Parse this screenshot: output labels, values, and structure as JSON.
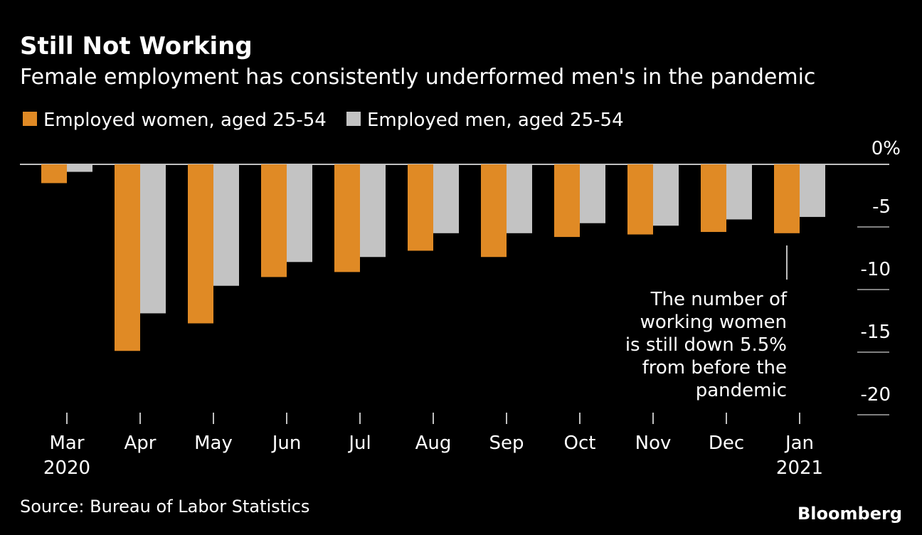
{
  "title": "Still Not Working",
  "subtitle": "Female employment has consistently underformed men's in the pandemic",
  "source": "Source: Bureau of Labor Statistics",
  "logo": "Bloomberg",
  "colors": {
    "women": "#e08a25",
    "men": "#c3c3c3",
    "background": "#000000"
  },
  "chart_data": {
    "type": "bar",
    "categories": [
      "Mar",
      "Apr",
      "May",
      "Jun",
      "Jul",
      "Aug",
      "Sep",
      "Oct",
      "Nov",
      "Dec",
      "Jan"
    ],
    "category_years": [
      "2020",
      "",
      "",
      "",
      "",
      "",
      "",
      "",
      "",
      "",
      "2021"
    ],
    "series": [
      {
        "name": "Employed women, aged 25-54",
        "values": [
          -1.5,
          -14.9,
          -12.7,
          -9.0,
          -8.6,
          -6.9,
          -7.4,
          -5.8,
          -5.6,
          -5.4,
          -5.5
        ]
      },
      {
        "name": "Employed men, aged 25-54",
        "values": [
          -0.6,
          -11.9,
          -9.7,
          -7.8,
          -7.4,
          -5.5,
          -5.5,
          -4.7,
          -4.9,
          -4.4,
          -4.2
        ]
      }
    ],
    "ylim": [
      -20,
      0
    ],
    "yticks": [
      0,
      -5,
      -10,
      -15,
      -20
    ],
    "ytick_labels": [
      "0%",
      "-5",
      "-10",
      "-15",
      "-20"
    ],
    "legend_position": "top-left",
    "annotation": {
      "category": "Jan",
      "lines": [
        "The number of",
        "working women",
        "is still down 5.5%",
        "from before the",
        "pandemic"
      ]
    }
  }
}
